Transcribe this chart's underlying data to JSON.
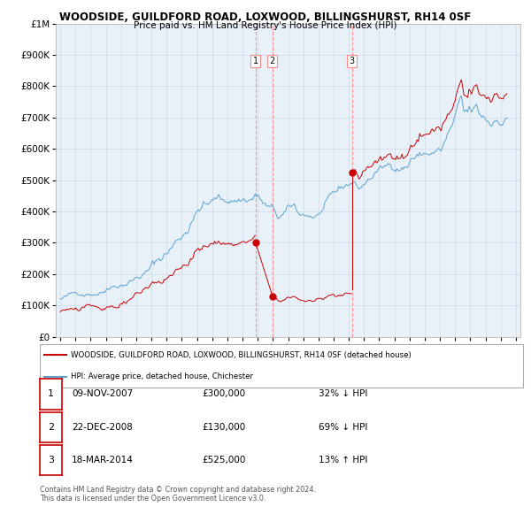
{
  "title": "WOODSIDE, GUILDFORD ROAD, LOXWOOD, BILLINGSHURST, RH14 0SF",
  "subtitle": "Price paid vs. HM Land Registry's House Price Index (HPI)",
  "legend_property": "WOODSIDE, GUILDFORD ROAD, LOXWOOD, BILLINGSHURST, RH14 0SF (detached house)",
  "legend_hpi": "HPI: Average price, detached house, Chichester",
  "footnote1": "Contains HM Land Registry data © Crown copyright and database right 2024.",
  "footnote2": "This data is licensed under the Open Government Licence v3.0.",
  "transactions": [
    {
      "num": 1,
      "date": "09-NOV-2007",
      "price": 300000,
      "rel": "32% ↓ HPI",
      "year": 2007.86
    },
    {
      "num": 2,
      "date": "22-DEC-2008",
      "price": 130000,
      "rel": "69% ↓ HPI",
      "year": 2008.97
    },
    {
      "num": 3,
      "date": "18-MAR-2014",
      "price": 525000,
      "rel": "13% ↑ HPI",
      "year": 2014.21
    }
  ],
  "hpi_color": "#5ba3d0",
  "property_color": "#cc0000",
  "vline_color": "#ff8888",
  "marker_color": "#cc0000",
  "grid_color": "#d0d8e8",
  "bg_color": "#e8f0f8",
  "legend_box_color": "#cc0000",
  "ylim": [
    0,
    1000000
  ],
  "yticks": [
    0,
    100000,
    200000,
    300000,
    400000,
    500000,
    600000,
    700000,
    800000,
    900000,
    1000000
  ],
  "ytick_labels": [
    "£0",
    "£100K",
    "£200K",
    "£300K",
    "£400K",
    "£500K",
    "£600K",
    "£700K",
    "£800K",
    "£900K",
    "£1M"
  ],
  "xlim_start": 1994.7,
  "xlim_end": 2025.3
}
